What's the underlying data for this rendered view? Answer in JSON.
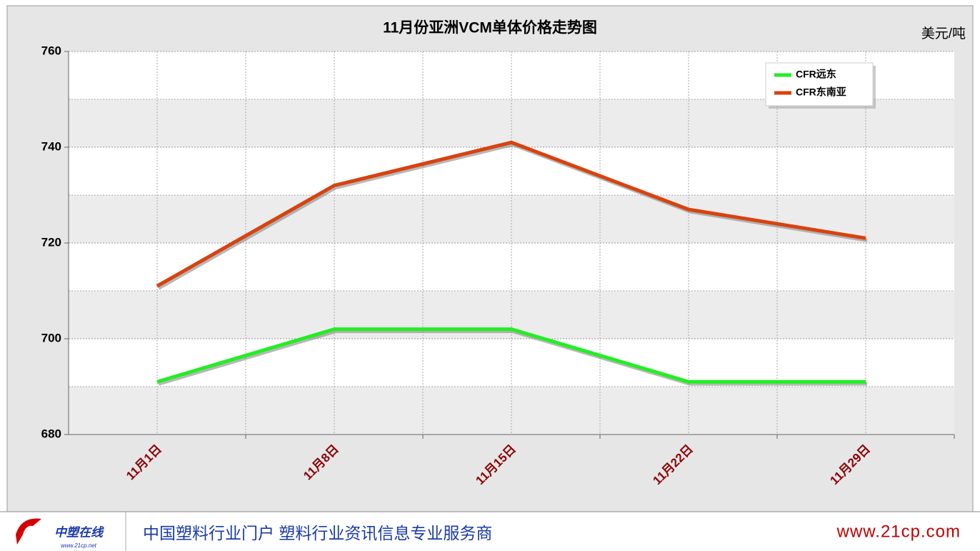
{
  "chart_data": {
    "type": "line",
    "title": "11月份亚洲VCM单体价格走势图",
    "unit": "美元/吨",
    "categories": [
      "11月1日",
      "11月8日",
      "11月15日",
      "11月22日",
      "11月29日"
    ],
    "series": [
      {
        "name": "CFR远东",
        "color": "#22ee22",
        "values": [
          691,
          702,
          702,
          691,
          691
        ]
      },
      {
        "name": "CFR东南亚",
        "color": "#d9420e",
        "values": [
          711,
          732,
          741,
          727,
          721
        ]
      }
    ],
    "ylim": [
      680,
      760
    ],
    "yticks": [
      680,
      700,
      720,
      740,
      760
    ],
    "grid": true,
    "legend": "upper right"
  },
  "footer": {
    "logo": "中塑在线",
    "logo_url": "www.21cp.net",
    "slogan": "中国塑料行业门户 塑料行业资讯信息专业服务商",
    "url": "www.21cp.com"
  }
}
